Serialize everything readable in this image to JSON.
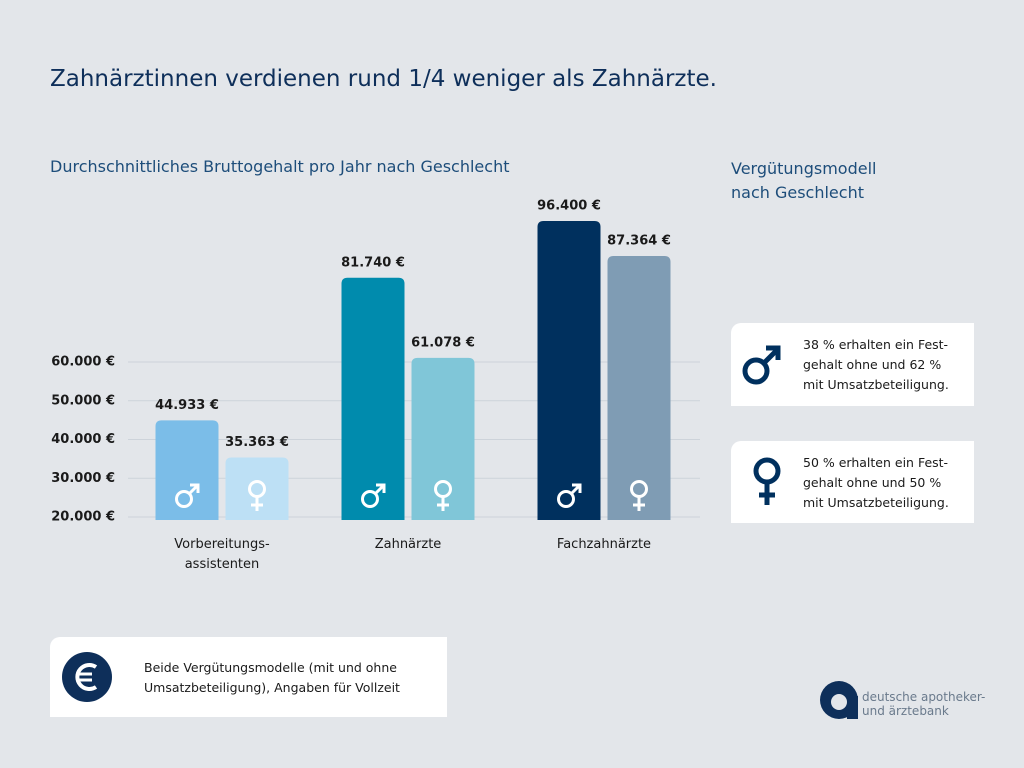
{
  "chart_data": {
    "type": "bar",
    "title": "Zahnärztinnen verdienen rund 1/4 weniger als Zahnärzte.",
    "subtitle": "Durchschnittliches Bruttogehalt pro Jahr nach Geschlecht",
    "categories": [
      "Vorbereitungs-\nassistenten",
      "Zahnärzte",
      "Fachzahnärzte"
    ],
    "series": [
      {
        "colors": [
          "#7bbde8",
          "#008bad",
          "#00305e"
        ],
        "values": [
          44933,
          81740,
          96400
        ],
        "value_labels": [
          "44.933 €",
          "81.740 €",
          "96.400 €"
        ]
      },
      {
        "colors": [
          "#bde0f5",
          "#80c6d8",
          "#7f9cb4"
        ],
        "values": [
          35363,
          61078,
          87364
        ],
        "value_labels": [
          "35.363 €",
          "61.078 €",
          "87.364 €"
        ]
      }
    ],
    "ylim": [
      20000,
      100000
    ],
    "yticks": [
      {
        "value": 20000,
        "label": "20.000 €"
      },
      {
        "value": 30000,
        "label": "30.000 €"
      },
      {
        "value": 40000,
        "label": "40.000 €"
      },
      {
        "value": 50000,
        "label": "50.000 €"
      },
      {
        "value": 60000,
        "label": "60.000 €"
      }
    ],
    "grid": true
  },
  "side_panel": {
    "title": "Vergütungsmodell\nnach Geschlecht",
    "male_text": "38 % erhalten ein Fest-\ngehalt ohne und 62 %\nmit Umsatzbeteiligung.",
    "female_text": "50 % erhalten ein Fest-\ngehalt ohne und 50 %\nmit Umsatzbeteiligung."
  },
  "note": "Beide Vergütungsmodelle (mit und ohne\nUmsatzbeteiligung), Angaben für Vollzeit",
  "logo": "deutsche apotheker-\nund ärztebank"
}
